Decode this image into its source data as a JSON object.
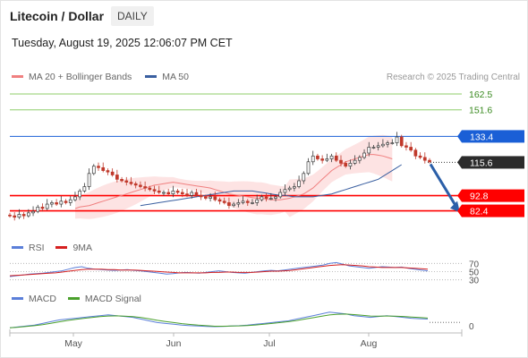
{
  "header": {
    "title": "Litecoin / Dollar",
    "timeframe": "DAILY",
    "datetime": "Tuesday, August 19, 2025 12:06:07 PM CET",
    "credit": "Research © 2025 Trading Central"
  },
  "colors": {
    "ma20": "#f08080",
    "ma50": "#3a5fa0",
    "band_fill": "#fde3e3",
    "support": "#ff0000",
    "resistance_line": "#1a5fd6",
    "target": "#8fce6a",
    "candle_up": "#3b3b3b",
    "candle_down": "#c0392b",
    "rsi": "#5b7fd9",
    "rsi_ma": "#d62020",
    "macd": "#5b7fd9",
    "macd_signal": "#4aa02c",
    "arrow": "#2b5fa8"
  },
  "legends": {
    "price": [
      {
        "name": "MA 20 + Bollinger Bands",
        "color": "#f08080"
      },
      {
        "name": "MA 50",
        "color": "#3a5fa0"
      }
    ],
    "rsi": [
      {
        "name": "RSI",
        "color": "#5b7fd9"
      },
      {
        "name": "9MA",
        "color": "#d62020"
      }
    ],
    "macd": [
      {
        "name": "MACD",
        "color": "#5b7fd9"
      },
      {
        "name": "MACD Signal",
        "color": "#4aa02c"
      }
    ]
  },
  "chart_data": [
    {
      "type": "candlestick",
      "panel": "price",
      "x_ticks": [
        "May",
        "Jun",
        "Jul",
        "Aug"
      ],
      "ylim": [
        76,
        168
      ],
      "levels": [
        {
          "label": "162.5",
          "value": 162.5,
          "kind": "target"
        },
        {
          "label": "151.6",
          "value": 151.6,
          "kind": "target"
        },
        {
          "label": "133.4",
          "value": 133.4,
          "kind": "resistance"
        },
        {
          "label": "115.6",
          "value": 115.6,
          "kind": "last"
        },
        {
          "label": "92.8",
          "value": 92.8,
          "kind": "support"
        },
        {
          "label": "82.4",
          "value": 82.4,
          "kind": "support"
        }
      ],
      "forecast": {
        "from": 115.6,
        "to": 82.4,
        "direction": "down"
      },
      "series": [
        {
          "name": "Price",
          "closes": [
            79,
            78,
            80,
            79,
            81,
            82,
            85,
            84,
            87,
            88,
            87,
            89,
            88,
            90,
            92,
            96,
            99,
            108,
            113,
            112,
            110,
            109,
            107,
            104,
            103,
            102,
            101,
            100,
            99,
            98,
            97,
            96,
            95,
            95,
            94,
            96,
            95,
            94,
            93,
            95,
            93,
            92,
            91,
            92,
            90,
            89,
            88,
            86,
            87,
            88,
            89,
            88,
            88,
            90,
            92,
            91,
            91,
            92,
            95,
            97,
            98,
            99,
            103,
            108,
            116,
            120,
            118,
            117,
            118,
            120,
            117,
            115,
            113,
            115,
            117,
            119,
            122,
            126,
            126,
            127,
            128,
            129,
            129,
            133,
            127,
            126,
            124,
            120,
            119,
            117,
            116
          ]
        },
        {
          "name": "MA 20",
          "values": [
            84,
            85,
            85.5,
            86,
            87,
            88,
            89,
            90,
            91,
            92,
            93,
            94,
            95,
            96,
            97,
            98,
            99,
            100,
            100.5,
            101,
            101.5,
            102,
            101.5,
            101,
            100.5,
            100,
            99.5,
            99,
            98.5,
            98,
            97,
            96,
            95,
            94,
            93.5,
            93,
            92.5,
            92,
            91.5,
            91,
            91,
            90.5,
            90,
            90,
            90,
            90.5,
            91,
            92,
            93,
            94,
            96,
            98,
            101,
            104,
            107,
            110,
            112,
            114,
            116,
            117,
            118,
            119,
            120,
            121,
            121,
            120.5,
            120,
            119,
            118
          ]
        },
        {
          "name": "MA 50",
          "values": [
            86,
            86.5,
            87,
            87.5,
            88,
            88.5,
            89,
            89.5,
            90,
            90.5,
            91,
            91.5,
            92,
            92.5,
            93,
            93.5,
            94,
            94.5,
            95,
            95.5,
            96,
            96,
            96,
            96,
            96,
            95.5,
            95,
            94.5,
            94,
            93.5,
            93,
            93,
            92.5,
            92,
            92,
            92,
            92,
            92,
            92.5,
            93,
            93.5,
            94,
            95,
            96,
            97,
            98,
            99,
            100,
            101,
            102,
            103,
            104,
            106,
            108,
            110,
            112,
            114
          ]
        }
      ]
    },
    {
      "type": "line",
      "panel": "rsi",
      "ylim": [
        25,
        75
      ],
      "levels": [
        {
          "label": "70",
          "value": 70
        },
        {
          "label": "50",
          "value": 50
        },
        {
          "label": "30",
          "value": 30
        }
      ],
      "series": [
        {
          "name": "RSI",
          "values": [
            38,
            40,
            42,
            44,
            45,
            46,
            48,
            50,
            52,
            56,
            60,
            62,
            58,
            56,
            55,
            54,
            53,
            54,
            55,
            53,
            52,
            50,
            48,
            46,
            44,
            45,
            47,
            48,
            47,
            46,
            48,
            50,
            52,
            50,
            48,
            47,
            46,
            48,
            50,
            52,
            53,
            52,
            54,
            56,
            58,
            60,
            62,
            64,
            66,
            70,
            72,
            68,
            64,
            62,
            60,
            58,
            60,
            62,
            61,
            60,
            61,
            58,
            56,
            54,
            52
          ]
        },
        {
          "name": "9MA",
          "values": [
            40,
            41,
            42,
            43,
            44,
            45,
            46,
            47,
            49,
            51,
            53,
            55,
            56,
            56,
            56,
            55,
            55,
            54,
            54,
            54,
            53,
            52,
            51,
            50,
            49,
            48,
            47,
            47,
            47,
            47,
            47,
            48,
            48,
            49,
            49,
            48,
            48,
            48,
            49,
            50,
            51,
            51,
            52,
            53,
            55,
            57,
            59,
            61,
            63,
            65,
            66,
            67,
            66,
            65,
            64,
            62,
            61,
            60,
            60,
            60,
            60,
            59,
            58,
            57,
            56
          ]
        }
      ]
    },
    {
      "type": "line",
      "panel": "macd",
      "ylim": [
        -3,
        12
      ],
      "levels": [
        {
          "label": "0",
          "value": 0
        }
      ],
      "series": [
        {
          "name": "MACD",
          "values": [
            0,
            0.5,
            1,
            1.5,
            2.5,
            3.5,
            4.5,
            5,
            5.5,
            6,
            6.5,
            7,
            7.5,
            7,
            6.5,
            6,
            5,
            4,
            3,
            2.5,
            2,
            1.5,
            1.2,
            1,
            0.8,
            0.6,
            0.8,
            1,
            1.2,
            1.5,
            2,
            2.5,
            3,
            3.5,
            4,
            5,
            6,
            7,
            8,
            9,
            8.5,
            8,
            7,
            6.5,
            6,
            6.5,
            7,
            6.5,
            6,
            5.5,
            5.2,
            5
          ]
        },
        {
          "name": "MACD Signal",
          "values": [
            0,
            0.3,
            0.7,
            1.2,
            1.8,
            2.6,
            3.4,
            4.2,
            4.8,
            5.4,
            5.9,
            6.4,
            6.8,
            6.9,
            6.7,
            6.4,
            5.9,
            5.1,
            4.3,
            3.6,
            3,
            2.4,
            1.9,
            1.5,
            1.2,
            0.9,
            0.9,
            1,
            1.1,
            1.3,
            1.6,
            2,
            2.5,
            3,
            3.5,
            4.2,
            5,
            5.8,
            6.6,
            7.4,
            7.8,
            7.9,
            7.6,
            7.2,
            6.8,
            6.7,
            6.8,
            6.7,
            6.5,
            6.2,
            5.9,
            5.6
          ]
        }
      ]
    }
  ]
}
